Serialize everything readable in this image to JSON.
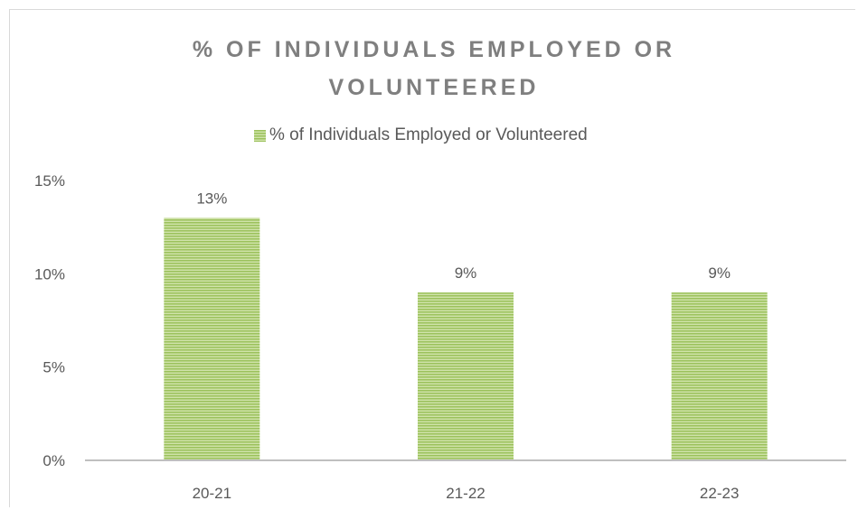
{
  "chart_data": {
    "type": "bar",
    "title": "% OF INDIVIDUALS EMPLOYED OR VOLUNTEERED",
    "xlabel": "",
    "ylabel": "",
    "categories": [
      "20-21",
      "21-22",
      "22-23"
    ],
    "series": [
      {
        "name": "% of Individuals Employed or Volunteered",
        "values": [
          13,
          9,
          9
        ],
        "data_labels": [
          "13%",
          "9%",
          "9%"
        ],
        "color": "#9bc15b"
      }
    ],
    "ylim": [
      0,
      15
    ],
    "yticks": [
      0,
      5,
      10,
      15
    ],
    "ytick_labels": [
      "0%",
      "5%",
      "10%",
      "15%"
    ],
    "grid": false,
    "legend_position": "top"
  },
  "colors": {
    "bar_fill": "#9bc15b",
    "bar_stripe": "#cfe2a9",
    "axis": "#bfbfbf",
    "text": "#595959",
    "title": "#7f7f7f"
  }
}
